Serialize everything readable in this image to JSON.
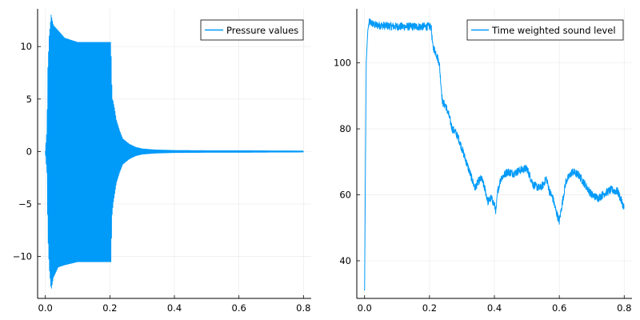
{
  "chart_data": [
    {
      "type": "line",
      "title": "",
      "xlabel": "",
      "ylabel": "",
      "xlim": [
        -0.024,
        0.824
      ],
      "ylim": [
        -14,
        13.6
      ],
      "xticks": [
        0.0,
        0.2,
        0.4,
        0.6,
        0.8
      ],
      "xtick_labels": [
        "0.0",
        "0.2",
        "0.4",
        "0.6",
        "0.8"
      ],
      "yticks": [
        -10,
        -5,
        0,
        5,
        10
      ],
      "ytick_labels": [
        "−10",
        "−5",
        "0",
        "5",
        "10"
      ],
      "grid": true,
      "legend_position": "top-right",
      "series": [
        {
          "name": "Pressure values",
          "color": "#009af9",
          "oscillating": true,
          "cycles": 400,
          "x": [
            0.0,
            0.005,
            0.008,
            0.012,
            0.018,
            0.025,
            0.04,
            0.06,
            0.1,
            0.15,
            0.195,
            0.203,
            0.207,
            0.21,
            0.215,
            0.22,
            0.23,
            0.24,
            0.26,
            0.28,
            0.3,
            0.34,
            0.4,
            0.5,
            0.6,
            0.7,
            0.8
          ],
          "upper": [
            0.0,
            2.0,
            8.0,
            11.0,
            13.0,
            12.0,
            11.5,
            10.8,
            10.4,
            10.4,
            10.4,
            10.4,
            5.0,
            4.8,
            4.0,
            3.0,
            2.0,
            1.2,
            0.7,
            0.4,
            0.25,
            0.15,
            0.1,
            0.08,
            0.08,
            0.06,
            0.05
          ],
          "lower": [
            0.0,
            -2.0,
            -8.0,
            -11.0,
            -13.2,
            -12.0,
            -11.0,
            -10.8,
            -10.5,
            -10.5,
            -10.5,
            -10.5,
            -6.0,
            -5.0,
            -4.0,
            -3.0,
            -2.0,
            -1.2,
            -0.7,
            -0.4,
            -0.25,
            -0.15,
            -0.1,
            -0.08,
            -0.08,
            -0.06,
            -0.05
          ]
        }
      ]
    },
    {
      "type": "line",
      "title": "",
      "xlabel": "",
      "ylabel": "",
      "xlim": [
        -0.024,
        0.824
      ],
      "ylim": [
        28.6,
        116.4
      ],
      "xticks": [
        0.0,
        0.2,
        0.4,
        0.6,
        0.8
      ],
      "xtick_labels": [
        "0.0",
        "0.2",
        "0.4",
        "0.6",
        "0.8"
      ],
      "yticks": [
        40,
        60,
        80,
        100
      ],
      "ytick_labels": [
        "40",
        "60",
        "80",
        "100"
      ],
      "grid": true,
      "legend_position": "top-right",
      "series": [
        {
          "name": "Time weighted sound level",
          "color": "#009af9",
          "noise_amplitude": 1.2,
          "x": [
            0.0,
            0.002,
            0.005,
            0.01,
            0.015,
            0.03,
            0.1,
            0.205,
            0.21,
            0.22,
            0.23,
            0.24,
            0.25,
            0.26,
            0.27,
            0.28,
            0.29,
            0.3,
            0.32,
            0.34,
            0.35,
            0.36,
            0.37,
            0.38,
            0.39,
            0.4,
            0.405,
            0.41,
            0.42,
            0.43,
            0.44,
            0.46,
            0.48,
            0.5,
            0.52,
            0.54,
            0.55,
            0.56,
            0.57,
            0.58,
            0.59,
            0.6,
            0.61,
            0.62,
            0.64,
            0.66,
            0.68,
            0.7,
            0.72,
            0.74,
            0.76,
            0.78,
            0.8
          ],
          "y": [
            31.0,
            60.0,
            100.0,
            110.0,
            112.5,
            111.5,
            111.0,
            111.0,
            105.0,
            103.0,
            100.0,
            88.0,
            87.0,
            84.0,
            80.0,
            79.0,
            77.0,
            74.0,
            68.0,
            62.0,
            64.0,
            65.0,
            62.0,
            58.0,
            59.0,
            57.0,
            55.0,
            61.0,
            65.0,
            66.0,
            67.0,
            66.5,
            67.5,
            68.0,
            63.0,
            62.0,
            63.0,
            65.0,
            61.0,
            59.0,
            55.0,
            52.0,
            58.0,
            64.0,
            67.0,
            66.0,
            63.0,
            60.0,
            59.0,
            60.5,
            61.5,
            61.0,
            56.0
          ]
        }
      ]
    }
  ]
}
